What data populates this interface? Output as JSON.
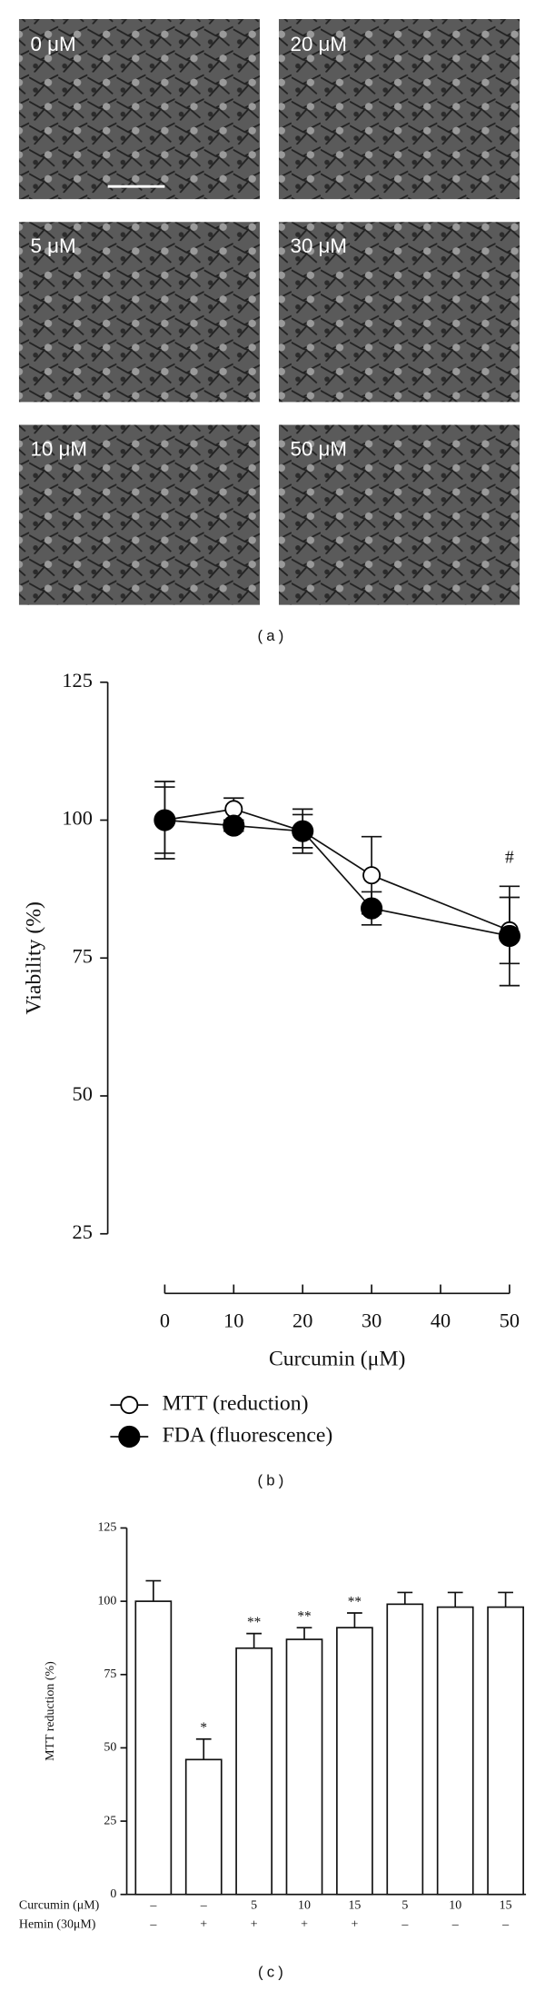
{
  "panel_a": {
    "labels": [
      "0 μM",
      "20 μM",
      "5 μM",
      "30 μM",
      "10 μM",
      "50 μM"
    ],
    "caption": "(a)"
  },
  "captions": {
    "b": "(b)",
    "c": "(c)"
  },
  "chart_data": [
    {
      "type": "line",
      "y_label": "Viability (%)",
      "x_label": "Curcumin (μM)",
      "x": [
        0,
        10,
        20,
        30,
        50
      ],
      "xlim": [
        0,
        50
      ],
      "xticks": [
        0,
        10,
        20,
        30,
        40,
        50
      ],
      "ylim": [
        25,
        125
      ],
      "yticks": [
        25,
        50,
        75,
        100,
        125
      ],
      "series": [
        {
          "name": "MTT (reduction)",
          "color": "#ffffff",
          "values": [
            100,
            102,
            98,
            90,
            80
          ],
          "errors": [
            7,
            2,
            3,
            7,
            6
          ]
        },
        {
          "name": "FDA (fluorescence)",
          "color": "#000000",
          "values": [
            100,
            99,
            98,
            84,
            79
          ],
          "errors": [
            6,
            1,
            4,
            3,
            9
          ]
        }
      ],
      "annotations": [
        {
          "x": 50,
          "y": 93,
          "text": "#"
        }
      ]
    },
    {
      "type": "bar",
      "y_label": "MTT reduction (%)",
      "category_rows": [
        {
          "label": "Curcumin (μM)",
          "values": [
            "–",
            "–",
            "5",
            "10",
            "15",
            "5",
            "10",
            "15"
          ]
        },
        {
          "label": "Hemin (30μM)",
          "values": [
            "–",
            "+",
            "+",
            "+",
            "+",
            "–",
            "–",
            "–"
          ]
        }
      ],
      "values": [
        100,
        46,
        84,
        87,
        91,
        99,
        98,
        98
      ],
      "errors": [
        7,
        7,
        5,
        4,
        5,
        4,
        5,
        5
      ],
      "annotations": [
        null,
        "*",
        "**",
        "**",
        "**",
        null,
        null,
        null
      ],
      "color": "#ffffff",
      "ylim": [
        0,
        125
      ],
      "yticks": [
        0,
        25,
        50,
        75,
        100,
        125
      ]
    }
  ]
}
